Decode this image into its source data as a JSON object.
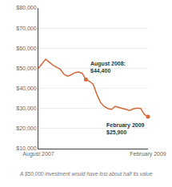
{
  "chart_data": {
    "type": "line",
    "subtitle": "A $50,000 investment would have lost about half its value",
    "color": "#d4693a",
    "x": [
      0,
      1,
      2,
      3,
      4,
      5,
      6,
      7,
      8,
      9,
      10,
      11,
      12,
      13,
      14,
      15,
      16,
      17,
      18,
      19,
      20,
      21,
      22,
      23,
      24,
      25,
      26,
      27,
      28,
      29,
      30
    ],
    "values": [
      50000,
      52500,
      54500,
      53000,
      51500,
      50500,
      49500,
      47000,
      46000,
      46800,
      47800,
      48200,
      47500,
      44400,
      43500,
      42000,
      37000,
      33000,
      31000,
      30000,
      29500,
      31000,
      30500,
      30000,
      29500,
      29000,
      29800,
      30200,
      30000,
      27000,
      25900
    ],
    "xlim": [
      0,
      30
    ],
    "xticks": [
      {
        "value": 0,
        "label": "August 2007"
      },
      {
        "value": 30,
        "label": "February 2009"
      }
    ],
    "ylim": [
      10000,
      80000
    ],
    "yticks": [
      {
        "value": 10000,
        "label": "$10,000"
      },
      {
        "value": 20000,
        "label": "$20,000"
      },
      {
        "value": 30000,
        "label": "$30,000"
      },
      {
        "value": 40000,
        "label": "$40,000"
      },
      {
        "value": 50000,
        "label": "$50,000"
      },
      {
        "value": 60000,
        "label": "$60,000"
      },
      {
        "value": 70000,
        "label": "$70,000"
      },
      {
        "value": 80000,
        "label": "$80,000"
      }
    ],
    "grid": true,
    "annotations": [
      {
        "text": "August 2008:\n$44,400",
        "x": 13,
        "y": 44400
      },
      {
        "text": "February 2009\n$25,900",
        "x": 30,
        "y": 25900
      }
    ]
  }
}
